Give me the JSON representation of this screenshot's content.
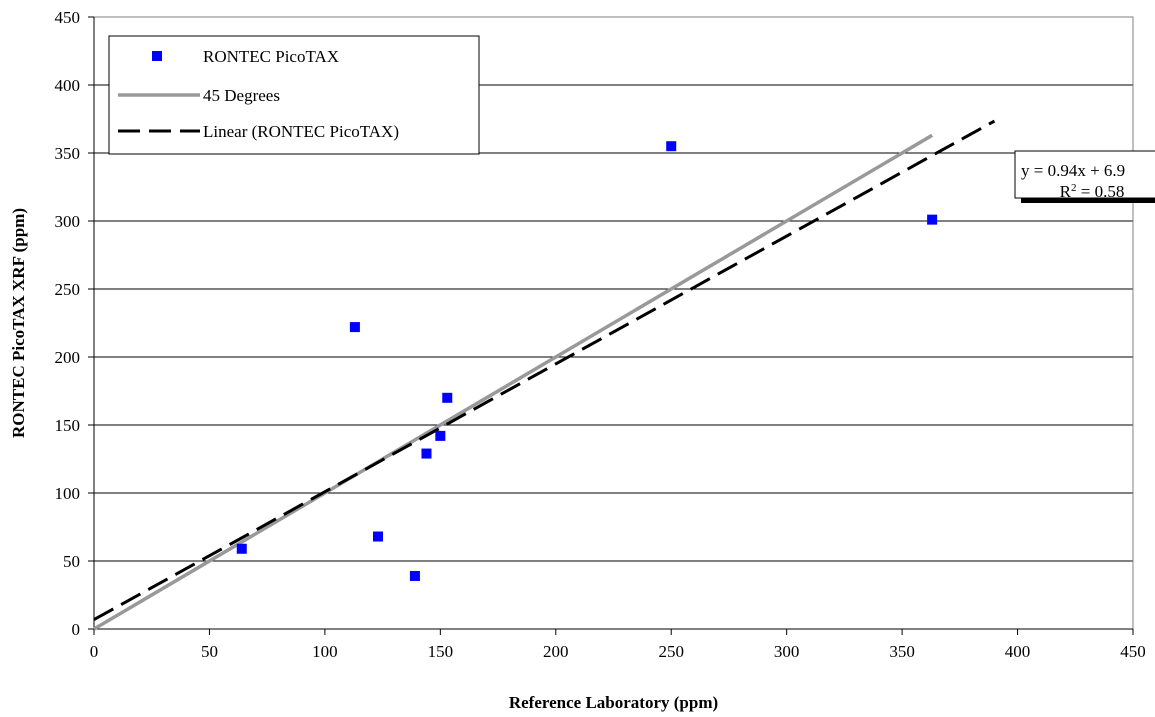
{
  "chart_data": {
    "type": "scatter",
    "title": "",
    "xlabel": "Reference Laboratory (ppm)",
    "ylabel": "RONTEC PicoTAX XRF (ppm)",
    "xlim": [
      0,
      450
    ],
    "ylim": [
      0,
      450
    ],
    "x_ticks": [
      "0",
      "50",
      "100",
      "150",
      "200",
      "250",
      "300",
      "350",
      "400",
      "450"
    ],
    "y_ticks": [
      "0",
      "50",
      "100",
      "150",
      "200",
      "250",
      "300",
      "350",
      "400",
      "450"
    ],
    "grid": "horizontal",
    "legend_position": "top-left",
    "series": [
      {
        "name": "RONTEC PicoTAX",
        "marker": "square",
        "color": "#0000FF",
        "points": [
          {
            "x": 64,
            "y": 59
          },
          {
            "x": 113,
            "y": 222
          },
          {
            "x": 123,
            "y": 68
          },
          {
            "x": 139,
            "y": 39
          },
          {
            "x": 144,
            "y": 129
          },
          {
            "x": 150,
            "y": 142
          },
          {
            "x": 153,
            "y": 170
          },
          {
            "x": 250,
            "y": 355
          },
          {
            "x": 363,
            "y": 301
          }
        ]
      },
      {
        "name": "45 Degrees",
        "style": "solid",
        "color": "#999999",
        "points": [
          {
            "x": 0,
            "y": 0
          },
          {
            "x": 363,
            "y": 363
          }
        ]
      },
      {
        "name": "Linear (RONTEC PicoTAX)",
        "style": "dashed",
        "color": "#000000",
        "slope": 0.94,
        "intercept": 6.9,
        "x_range": [
          0,
          390
        ]
      }
    ],
    "annotation": {
      "equation": "y = 0.94x + 6.9",
      "r2_base": "R",
      "r2_sup": "2",
      "r2_value": " = 0.58"
    }
  }
}
